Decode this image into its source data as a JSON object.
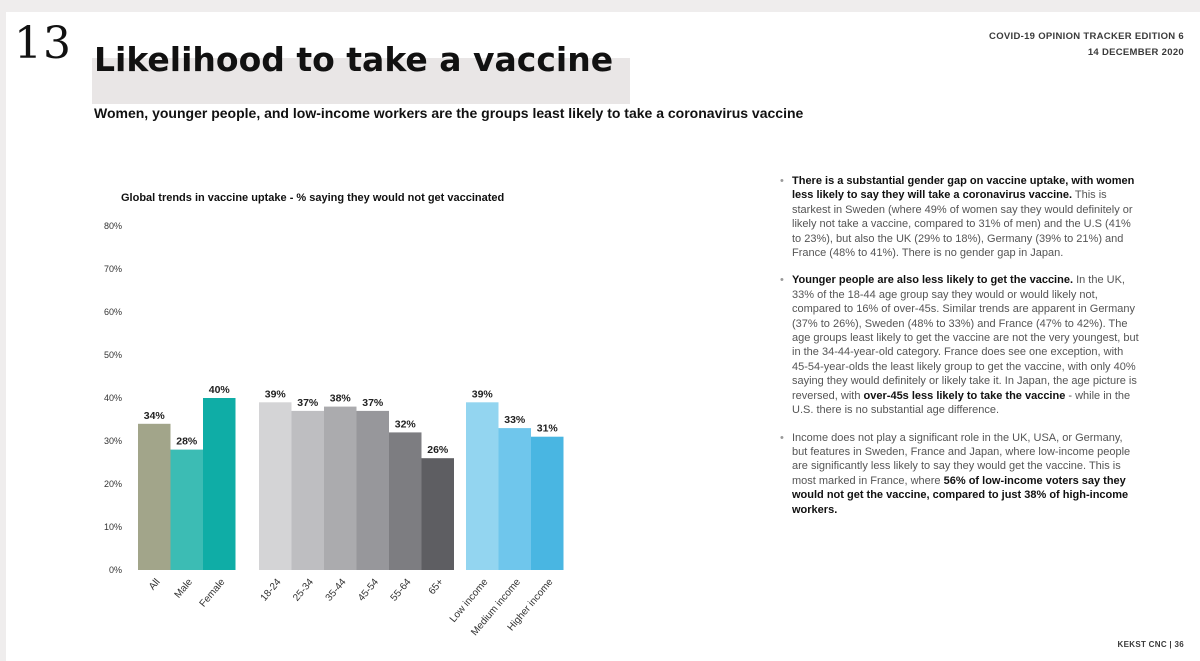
{
  "header": {
    "page_number": "13",
    "title": "Likelihood to take a vaccine",
    "edition": "COVID-19 OPINION TRACKER EDITION 6",
    "date": "14 DECEMBER 2020",
    "subtitle": "Women, younger people, and low-income workers are the groups least likely to take a coronavirus vaccine"
  },
  "chart_data": {
    "type": "bar",
    "title": "Global trends in vaccine uptake - % saying they would not get vaccinated",
    "xlabel": "",
    "ylabel": "",
    "ylim": [
      0,
      80
    ],
    "yticks": [
      "0%",
      "10%",
      "20%",
      "30%",
      "40%",
      "50%",
      "60%",
      "70%",
      "80%"
    ],
    "grid": false,
    "legend": "none",
    "categories": [
      "All",
      "Male",
      "Female",
      "18-24",
      "25-34",
      "35-44",
      "45-54",
      "55-64",
      "65+",
      "Low income",
      "Medium income",
      "Higher income"
    ],
    "values": [
      34,
      28,
      40,
      39,
      37,
      38,
      37,
      32,
      26,
      39,
      33,
      31
    ],
    "value_labels": [
      "34%",
      "28%",
      "40%",
      "39%",
      "37%",
      "38%",
      "37%",
      "32%",
      "26%",
      "39%",
      "33%",
      "31%"
    ],
    "colors": [
      "#a2a58a",
      "#3cbcb4",
      "#0fada6",
      "#d4d4d6",
      "#bebec1",
      "#ababae",
      "#97979b",
      "#7d7d81",
      "#5e5e62",
      "#93d5f0",
      "#6fc6ec",
      "#49b6e2"
    ]
  },
  "notes": [
    {
      "lead": "There is a substantial gender gap on vaccine uptake, with women less likely to say they will take a coronavirus vaccine.",
      "body": "This is starkest in Sweden (where 49% of women say they would definitely or likely not take a vaccine, compared to 31% of men) and the U.S (41% to 23%), but also the UK (29% to 18%), Germany (39% to 21%) and France (48% to 41%). There is no gender gap in Japan."
    },
    {
      "lead": "Younger people are also less likely to get the vaccine.",
      "body": "In the UK, 33% of the 18-44 age group say they would or would likely not, compared to 16% of over-45s. Similar trends are apparent in Germany (37% to 26%), Sweden (48% to 33%) and France (47% to 42%). The age groups least likely to get the vaccine are not the very youngest, but in the 34-44-year-old category. France does see one exception, with 45-54-year-olds the least likely group to get the vaccine, with only 40% saying they would definitely or likely take it. In Japan, the age picture is reversed, with",
      "emph": "over-45s less likely to take the vaccine",
      "tail": " - while in the U.S. there is no substantial age difference."
    },
    {
      "body": "Income does not play a significant role in the UK, USA, or Germany, but features in Sweden, France and Japan, where low-income people are significantly less likely to say they would get the vaccine. This is most marked in France, where",
      "emph": "56% of low-income voters say they would not get the vaccine, compared to just 38% of high-income workers."
    }
  ],
  "footer": "KEKST CNC | 36"
}
